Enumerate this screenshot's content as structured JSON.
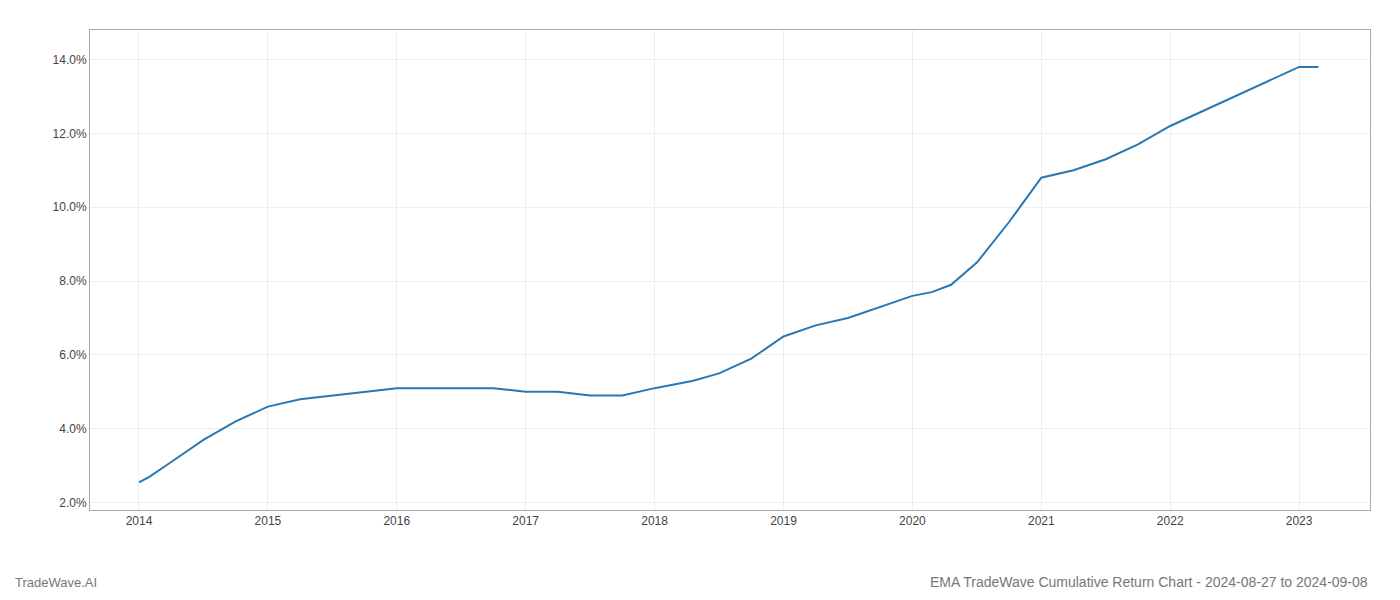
{
  "chart_data": {
    "type": "line",
    "title": "EMA TradeWave Cumulative Return Chart - 2024-08-27 to 2024-09-08",
    "annotations": [
      "TradeWave.AI"
    ],
    "x": [
      2014.0,
      2014.08,
      2014.25,
      2014.5,
      2014.75,
      2015.0,
      2015.25,
      2015.5,
      2015.75,
      2016.0,
      2016.25,
      2016.5,
      2016.75,
      2017.0,
      2017.25,
      2017.5,
      2017.75,
      2018.0,
      2018.15,
      2018.3,
      2018.5,
      2018.75,
      2019.0,
      2019.25,
      2019.5,
      2019.75,
      2020.0,
      2020.15,
      2020.3,
      2020.5,
      2020.75,
      2021.0,
      2021.25,
      2021.5,
      2021.75,
      2022.0,
      2022.25,
      2022.5,
      2022.75,
      2023.0,
      2023.15
    ],
    "values": [
      0.0255,
      0.027,
      0.031,
      0.037,
      0.042,
      0.046,
      0.048,
      0.049,
      0.05,
      0.051,
      0.051,
      0.051,
      0.051,
      0.05,
      0.05,
      0.049,
      0.049,
      0.051,
      0.052,
      0.053,
      0.055,
      0.059,
      0.065,
      0.068,
      0.07,
      0.073,
      0.076,
      0.077,
      0.079,
      0.085,
      0.096,
      0.108,
      0.11,
      0.113,
      0.117,
      0.122,
      0.126,
      0.13,
      0.134,
      0.138,
      0.138
    ],
    "color": "#2878b5",
    "xlim": [
      2013.62,
      2023.55
    ],
    "xticks": [
      2014,
      2015,
      2016,
      2017,
      2018,
      2019,
      2020,
      2021,
      2022,
      2023
    ],
    "ylim": [
      0.018,
      0.148
    ],
    "yticks": [
      {
        "value": 0.02,
        "label": "2.0%"
      },
      {
        "value": 0.04,
        "label": "4.0%"
      },
      {
        "value": 0.06,
        "label": "6.0%"
      },
      {
        "value": 0.08,
        "label": "8.0%"
      },
      {
        "value": 0.1,
        "label": "10.0%"
      },
      {
        "value": 0.12,
        "label": "12.0%"
      },
      {
        "value": 0.14,
        "label": "14.0%"
      }
    ],
    "grid": true
  }
}
